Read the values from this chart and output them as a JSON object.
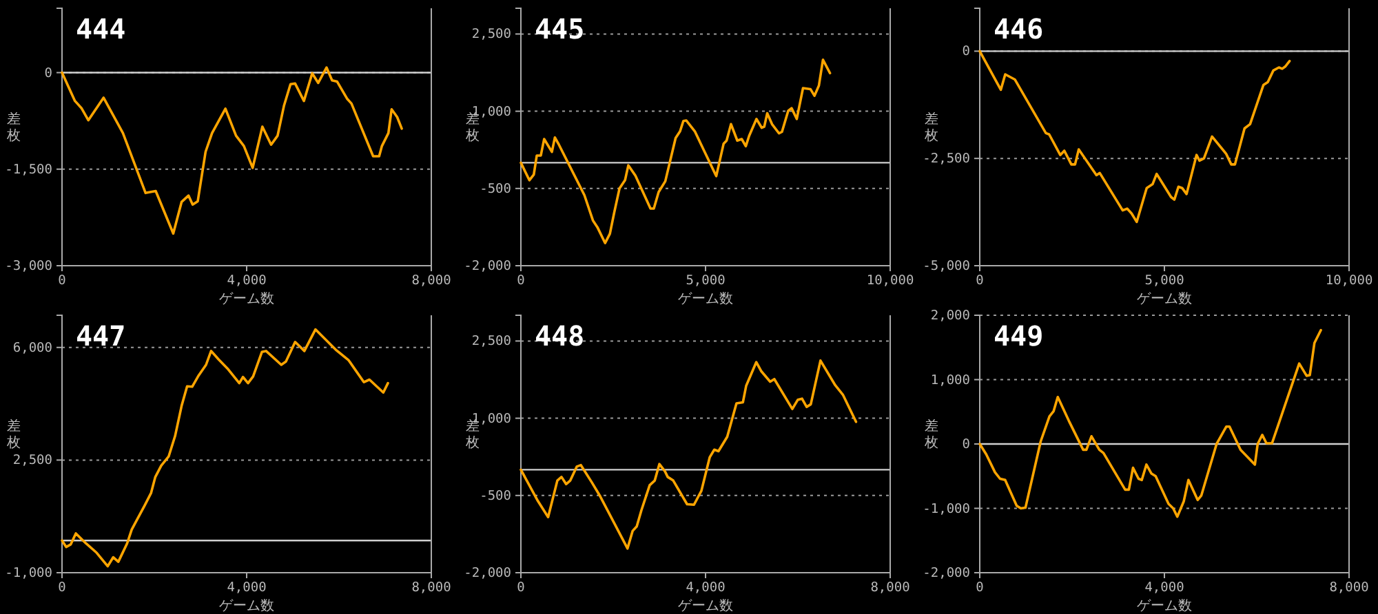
{
  "chart_data": [
    {
      "type": "line",
      "title": "444",
      "xlabel": "ゲーム数",
      "ylabel": "差枚",
      "xlim": [
        0,
        8000
      ],
      "xticks": [
        {
          "value": 0,
          "label": "0"
        },
        {
          "value": 4000,
          "label": "4,000"
        },
        {
          "value": 8000,
          "label": "8,000"
        }
      ],
      "ylim": [
        -3000,
        1000
      ],
      "yticks": [
        {
          "value": -3000,
          "label": "-3,000"
        },
        {
          "value": -1500,
          "label": "-1,500"
        },
        {
          "value": 0,
          "label": "0"
        }
      ],
      "grid": "y",
      "ref_lines": [
        {
          "axis": "y",
          "value": 0,
          "color": "#d0d0d0"
        }
      ],
      "series": [
        {
          "color": "#ffa500",
          "x": [
            0,
            280,
            420,
            570,
            900,
            1320,
            1810,
            2030,
            2410,
            2590,
            2740,
            2830,
            2940,
            3110,
            3250,
            3540,
            3770,
            3940,
            4130,
            4340,
            4530,
            4670,
            4810,
            4950,
            5050,
            5240,
            5420,
            5550,
            5730,
            5850,
            5960,
            6180,
            6270,
            6740,
            6870,
            6930,
            7070,
            7140,
            7260,
            7360
          ],
          "values": [
            0,
            -440,
            -550,
            -740,
            -390,
            -940,
            -1870,
            -1840,
            -2500,
            -2010,
            -1910,
            -2050,
            -2000,
            -1230,
            -940,
            -560,
            -980,
            -1140,
            -1480,
            -840,
            -1120,
            -980,
            -510,
            -180,
            -170,
            -440,
            -10,
            -160,
            80,
            -120,
            -140,
            -410,
            -480,
            -1300,
            -1300,
            -1140,
            -940,
            -570,
            -690,
            -870
          ]
        }
      ]
    },
    {
      "type": "line",
      "title": "445",
      "xlabel": "ゲーム数",
      "ylabel": "差枚",
      "xlim": [
        0,
        10000
      ],
      "xticks": [
        {
          "value": 0,
          "label": "0"
        },
        {
          "value": 5000,
          "label": "5,000"
        },
        {
          "value": 10000,
          "label": "10,000"
        }
      ],
      "ylim": [
        -2000,
        3000
      ],
      "yticks": [
        {
          "value": -2000,
          "label": "-2,000"
        },
        {
          "value": -500,
          "label": "-500"
        },
        {
          "value": 1000,
          "label": "1,000"
        },
        {
          "value": 2500,
          "label": "2,500"
        }
      ],
      "grid": "y",
      "ref_lines": [
        {
          "axis": "y",
          "value": 0,
          "color": "#d0d0d0"
        }
      ],
      "series": [
        {
          "color": "#ffa500",
          "x": [
            0,
            230,
            350,
            430,
            540,
            630,
            840,
            920,
            1030,
            1720,
            1950,
            2070,
            2280,
            2410,
            2530,
            2670,
            2820,
            2910,
            3100,
            3510,
            3600,
            3730,
            3910,
            4190,
            4310,
            4400,
            4480,
            4710,
            5290,
            5490,
            5570,
            5690,
            5860,
            5980,
            6090,
            6180,
            6380,
            6520,
            6590,
            6670,
            6800,
            6990,
            7070,
            7240,
            7330,
            7470,
            7640,
            7840,
            7950,
            8070,
            8180,
            8370
          ],
          "values": [
            0,
            -340,
            -230,
            140,
            140,
            460,
            210,
            490,
            350,
            -630,
            -1120,
            -1250,
            -1560,
            -1380,
            -960,
            -500,
            -340,
            -50,
            -250,
            -890,
            -890,
            -570,
            -360,
            480,
            610,
            810,
            820,
            610,
            -260,
            370,
            430,
            750,
            430,
            460,
            320,
            520,
            850,
            680,
            700,
            960,
            750,
            570,
            600,
            1010,
            1060,
            850,
            1450,
            1430,
            1300,
            1500,
            2000,
            1740
          ]
        }
      ]
    },
    {
      "type": "line",
      "title": "446",
      "xlabel": "ゲーム数",
      "ylabel": "差枚",
      "xlim": [
        0,
        10000
      ],
      "xticks": [
        {
          "value": 0,
          "label": "0"
        },
        {
          "value": 5000,
          "label": "5,000"
        },
        {
          "value": 10000,
          "label": "10,000"
        }
      ],
      "ylim": [
        -5000,
        1000
      ],
      "yticks": [
        {
          "value": -5000,
          "label": "-5,000"
        },
        {
          "value": -2500,
          "label": "-2,500"
        },
        {
          "value": 0,
          "label": "0"
        }
      ],
      "grid": "y",
      "ref_lines": [
        {
          "axis": "y",
          "value": 0,
          "color": "#d0d0d0"
        }
      ],
      "series": [
        {
          "color": "#ffa500",
          "x": [
            0,
            570,
            690,
            950,
            1790,
            1880,
            2180,
            2290,
            2480,
            2580,
            2680,
            3160,
            3250,
            3870,
            3990,
            4110,
            4250,
            4520,
            4680,
            4790,
            5180,
            5270,
            5380,
            5480,
            5600,
            5870,
            5950,
            6070,
            6290,
            6670,
            6810,
            6910,
            7170,
            7320,
            7680,
            7800,
            7950,
            8100,
            8190,
            8270,
            8390
          ],
          "values": [
            0,
            -900,
            -540,
            -660,
            -1910,
            -1940,
            -2420,
            -2320,
            -2640,
            -2640,
            -2290,
            -2890,
            -2840,
            -3710,
            -3670,
            -3780,
            -3980,
            -3190,
            -3100,
            -2860,
            -3400,
            -3460,
            -3160,
            -3190,
            -3330,
            -2420,
            -2550,
            -2500,
            -1990,
            -2390,
            -2640,
            -2640,
            -1800,
            -1700,
            -790,
            -720,
            -450,
            -380,
            -410,
            -360,
            -230
          ]
        }
      ]
    },
    {
      "type": "line",
      "title": "447",
      "xlabel": "ゲーム数",
      "ylabel": "差枚",
      "xlim": [
        0,
        8000
      ],
      "xticks": [
        {
          "value": 0,
          "label": "0"
        },
        {
          "value": 4000,
          "label": "4,000"
        },
        {
          "value": 8000,
          "label": "8,000"
        }
      ],
      "ylim": [
        -1000,
        7000
      ],
      "yticks": [
        {
          "value": -1000,
          "label": "-1,000"
        },
        {
          "value": 2500,
          "label": "2,500"
        },
        {
          "value": 6000,
          "label": "6,000"
        }
      ],
      "grid": "y",
      "ref_lines": [
        {
          "axis": "y",
          "value": 0,
          "color": "#d0d0d0"
        }
      ],
      "series": [
        {
          "color": "#ffa500",
          "x": [
            0,
            90,
            190,
            300,
            520,
            750,
            990,
            1110,
            1220,
            1410,
            1510,
            1790,
            1930,
            2020,
            2150,
            2310,
            2450,
            2590,
            2710,
            2820,
            2960,
            3120,
            3230,
            3390,
            3600,
            3840,
            3920,
            4030,
            4140,
            4330,
            4420,
            4750,
            4850,
            5050,
            5250,
            5490,
            5930,
            6210,
            6540,
            6660,
            6960,
            7060
          ],
          "values": [
            0,
            -200,
            -120,
            220,
            -90,
            -380,
            -800,
            -520,
            -660,
            -90,
            340,
            1090,
            1480,
            1970,
            2330,
            2610,
            3250,
            4180,
            4790,
            4780,
            5130,
            5460,
            5890,
            5630,
            5320,
            4890,
            5080,
            4890,
            5100,
            5860,
            5890,
            5460,
            5560,
            6170,
            5890,
            6560,
            5930,
            5600,
            4920,
            5000,
            4600,
            4890
          ]
        }
      ]
    },
    {
      "type": "line",
      "title": "448",
      "xlabel": "ゲーム数",
      "ylabel": "差枚",
      "xlim": [
        0,
        8000
      ],
      "xticks": [
        {
          "value": 0,
          "label": "0"
        },
        {
          "value": 4000,
          "label": "4,000"
        },
        {
          "value": 8000,
          "label": "8,000"
        }
      ],
      "ylim": [
        -2000,
        3000
      ],
      "yticks": [
        {
          "value": -2000,
          "label": "-2,000"
        },
        {
          "value": -500,
          "label": "-500"
        },
        {
          "value": 1000,
          "label": "1,000"
        },
        {
          "value": 2500,
          "label": "2,500"
        }
      ],
      "grid": "y",
      "ref_lines": [
        {
          "axis": "y",
          "value": 0,
          "color": "#d0d0d0"
        }
      ],
      "series": [
        {
          "color": "#ffa500",
          "x": [
            0,
            370,
            590,
            790,
            880,
            980,
            1070,
            1210,
            1300,
            1540,
            1720,
            2310,
            2420,
            2510,
            2610,
            2790,
            2900,
            3000,
            3120,
            3180,
            3300,
            3600,
            3750,
            3910,
            4090,
            4190,
            4280,
            4470,
            4670,
            4810,
            4880,
            5100,
            5210,
            5400,
            5490,
            5880,
            6000,
            6090,
            6190,
            6280,
            6490,
            6810,
            6980,
            7260
          ],
          "values": [
            0,
            -610,
            -920,
            -210,
            -140,
            -280,
            -210,
            60,
            90,
            -250,
            -520,
            -1530,
            -1190,
            -1100,
            -790,
            -300,
            -210,
            110,
            -30,
            -140,
            -210,
            -670,
            -680,
            -410,
            240,
            390,
            360,
            640,
            1290,
            1310,
            1630,
            2090,
            1910,
            1710,
            1760,
            1180,
            1360,
            1380,
            1220,
            1270,
            2120,
            1640,
            1450,
            930
          ]
        }
      ]
    },
    {
      "type": "line",
      "title": "449",
      "xlabel": "ゲーム数",
      "ylabel": "差枚",
      "xlim": [
        0,
        8000
      ],
      "xticks": [
        {
          "value": 0,
          "label": "0"
        },
        {
          "value": 4000,
          "label": "4,000"
        },
        {
          "value": 8000,
          "label": "8,000"
        }
      ],
      "ylim": [
        -2000,
        2000
      ],
      "yticks": [
        {
          "value": -2000,
          "label": "-2,000"
        },
        {
          "value": -1000,
          "label": "-1,000"
        },
        {
          "value": 0,
          "label": "0"
        },
        {
          "value": 1000,
          "label": "1,000"
        },
        {
          "value": 2000,
          "label": "2,000"
        }
      ],
      "grid": "y",
      "ref_lines": [
        {
          "axis": "y",
          "value": 0,
          "color": "#d0d0d0"
        }
      ],
      "series": [
        {
          "color": "#ffa500",
          "x": [
            0,
            140,
            330,
            440,
            550,
            800,
            890,
            990,
            1320,
            1510,
            1600,
            1690,
            1930,
            2240,
            2310,
            2420,
            2590,
            2680,
            3150,
            3230,
            3320,
            3440,
            3510,
            3610,
            3720,
            3810,
            4090,
            4190,
            4280,
            4420,
            4520,
            4720,
            4800,
            5130,
            5340,
            5410,
            5650,
            5960,
            6020,
            6120,
            6210,
            6330,
            6920,
            7080,
            7150,
            7250,
            7390
          ],
          "values": [
            0,
            -160,
            -440,
            -540,
            -560,
            -960,
            -1000,
            -990,
            40,
            430,
            510,
            730,
            360,
            -90,
            -90,
            120,
            -90,
            -140,
            -710,
            -710,
            -370,
            -540,
            -560,
            -320,
            -460,
            -500,
            -930,
            -1000,
            -1130,
            -890,
            -560,
            -870,
            -800,
            0,
            270,
            270,
            -90,
            -320,
            0,
            140,
            10,
            10,
            1250,
            1060,
            1070,
            1570,
            1770
          ]
        }
      ]
    }
  ]
}
